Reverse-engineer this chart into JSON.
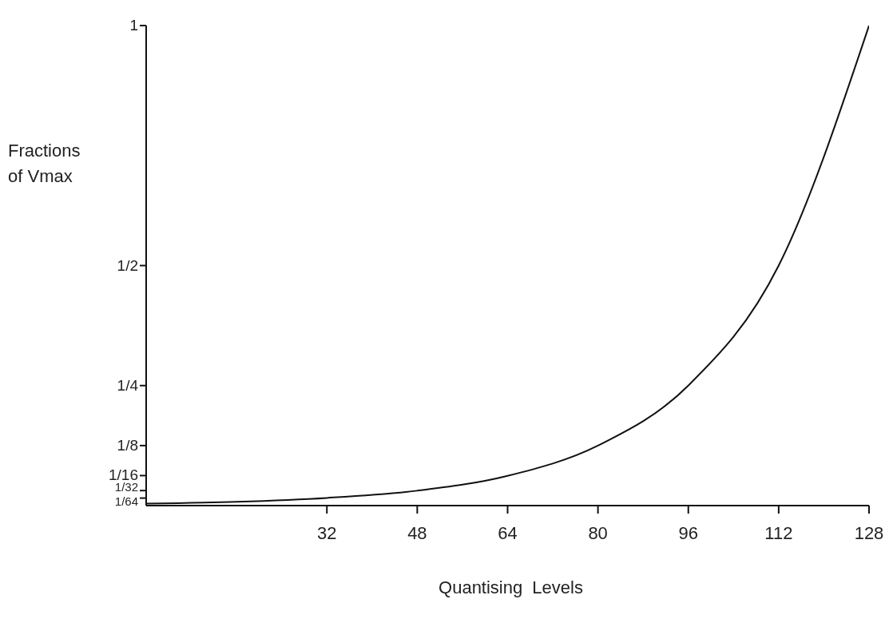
{
  "chart_data": {
    "type": "line",
    "xlabel": "Quantising Levels",
    "ylabel": "Fractions of Vmax",
    "x": [
      0,
      16,
      32,
      48,
      64,
      80,
      96,
      112,
      128
    ],
    "values": [
      0.004,
      0.008,
      0.016,
      0.031,
      0.062,
      0.125,
      0.25,
      0.5,
      1
    ],
    "color": "#111111",
    "xlim": [
      0,
      128
    ],
    "xticks": [
      32,
      48,
      64,
      80,
      96,
      112,
      128
    ],
    "ylim": [
      0,
      1
    ],
    "yticks": [
      {
        "value": 0.015625,
        "label": "1/64"
      },
      {
        "value": 0.03125,
        "label": "1/32"
      },
      {
        "value": 0.0625,
        "label": "1/16"
      },
      {
        "value": 0.125,
        "label": "1/8"
      },
      {
        "value": 0.25,
        "label": "1/4"
      },
      {
        "value": 0.5,
        "label": "1/2"
      },
      1
    ],
    "grid": false,
    "legend": false
  }
}
